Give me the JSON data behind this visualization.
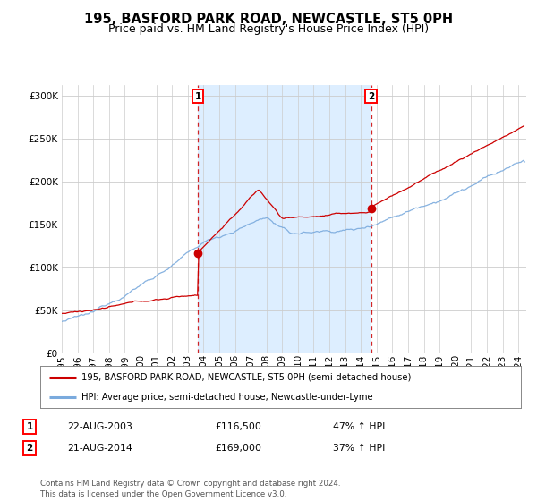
{
  "title": "195, BASFORD PARK ROAD, NEWCASTLE, ST5 0PH",
  "subtitle": "Price paid vs. HM Land Registry's House Price Index (HPI)",
  "ytick_vals": [
    0,
    50000,
    100000,
    150000,
    200000,
    250000,
    300000
  ],
  "ylim": [
    0,
    312000
  ],
  "xlim_start": 1995.3,
  "xlim_end": 2024.5,
  "sale1": {
    "date_num": 2003.64,
    "price": 116500,
    "label": "1",
    "date_str": "22-AUG-2003",
    "change": "47% ↑ HPI"
  },
  "sale2": {
    "date_num": 2014.64,
    "price": 169000,
    "label": "2",
    "date_str": "21-AUG-2014",
    "change": "37% ↑ HPI"
  },
  "legend_line1": "195, BASFORD PARK ROAD, NEWCASTLE, ST5 0PH (semi-detached house)",
  "legend_line2": "HPI: Average price, semi-detached house, Newcastle-under-Lyme",
  "footer": "Contains HM Land Registry data © Crown copyright and database right 2024.\nThis data is licensed under the Open Government Licence v3.0.",
  "hpi_color": "#7aaadd",
  "price_color": "#cc0000",
  "shade_color": "#ddeeff",
  "plot_bg": "#ffffff",
  "vline_color": "#cc0000",
  "grid_color": "#cccccc",
  "title_fontsize": 10.5,
  "subtitle_fontsize": 9,
  "tick_fontsize": 7.5,
  "xtick_years": [
    1995,
    1996,
    1997,
    1998,
    1999,
    2000,
    2001,
    2002,
    2003,
    2004,
    2005,
    2006,
    2007,
    2008,
    2009,
    2010,
    2011,
    2012,
    2013,
    2014,
    2015,
    2016,
    2017,
    2018,
    2019,
    2020,
    2021,
    2022,
    2023,
    2024
  ]
}
